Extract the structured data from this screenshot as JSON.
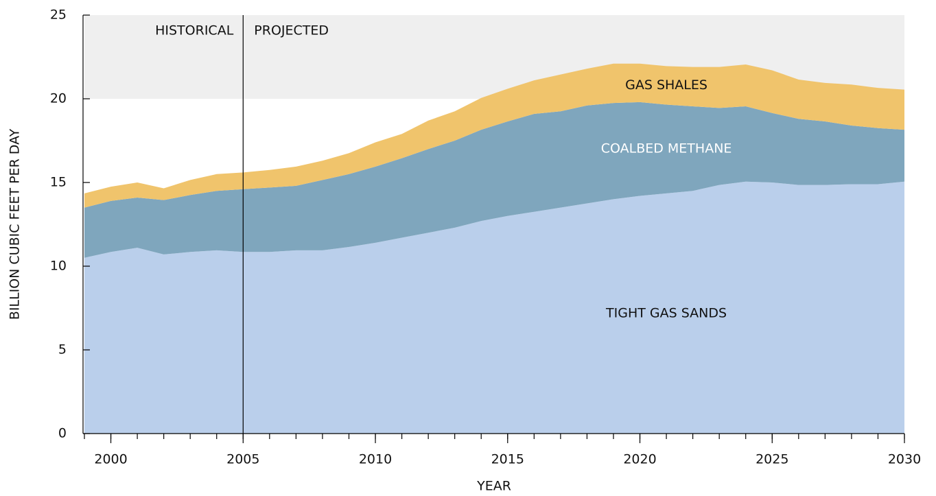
{
  "chart_data": {
    "type": "stacked_area",
    "xlabel": "YEAR",
    "ylabel": "BILLION CUBIC FEET PER DAY",
    "x": [
      1999,
      2000,
      2001,
      2002,
      2003,
      2004,
      2005,
      2006,
      2007,
      2008,
      2009,
      2010,
      2011,
      2012,
      2013,
      2014,
      2015,
      2016,
      2017,
      2018,
      2019,
      2020,
      2021,
      2022,
      2023,
      2024,
      2025,
      2026,
      2027,
      2028,
      2029,
      2030
    ],
    "series": [
      {
        "name": "TIGHT GAS SANDS",
        "color": "#bacfeb",
        "label_color": "#111111",
        "values": [
          10.5,
          10.85,
          11.1,
          10.7,
          10.85,
          10.95,
          10.85,
          10.85,
          10.95,
          10.95,
          11.15,
          11.4,
          11.7,
          12.0,
          12.3,
          12.7,
          13.0,
          13.25,
          13.5,
          13.75,
          14.0,
          14.2,
          14.35,
          14.5,
          14.85,
          15.05,
          15.0,
          14.85,
          14.85,
          14.9,
          14.9,
          15.05
        ]
      },
      {
        "name": "COALBED METHANE",
        "color": "#7fa6bd",
        "label_color": "#ffffff",
        "values": [
          3.0,
          3.05,
          3.0,
          3.25,
          3.4,
          3.55,
          3.75,
          3.85,
          3.85,
          4.2,
          4.35,
          4.55,
          4.75,
          5.0,
          5.2,
          5.45,
          5.65,
          5.85,
          5.75,
          5.85,
          5.75,
          5.6,
          5.3,
          5.05,
          4.6,
          4.5,
          4.15,
          3.95,
          3.8,
          3.5,
          3.35,
          3.1
        ]
      },
      {
        "name": "GAS SHALES",
        "color": "#f0c46c",
        "label_color": "#111111",
        "values": [
          0.85,
          0.85,
          0.9,
          0.7,
          0.9,
          1.0,
          1.0,
          1.05,
          1.15,
          1.15,
          1.25,
          1.45,
          1.45,
          1.7,
          1.75,
          1.9,
          1.95,
          2.0,
          2.2,
          2.2,
          2.35,
          2.3,
          2.3,
          2.35,
          2.45,
          2.5,
          2.55,
          2.35,
          2.3,
          2.45,
          2.4,
          2.4
        ]
      }
    ],
    "xlim": [
      1999,
      2030
    ],
    "xticks": [
      2000,
      2005,
      2010,
      2015,
      2020,
      2025,
      2030
    ],
    "minor_xticks": [
      1999,
      2000,
      2001,
      2002,
      2003,
      2004,
      2005,
      2006,
      2007,
      2008,
      2009,
      2010,
      2011,
      2012,
      2013,
      2014,
      2015,
      2016,
      2017,
      2018,
      2019,
      2020,
      2021,
      2022,
      2023,
      2024,
      2025,
      2026,
      2027,
      2028,
      2029,
      2030
    ],
    "ylim": [
      0,
      25
    ],
    "yticks": [
      0,
      5,
      10,
      15,
      20,
      25
    ],
    "shaded_band": [
      20,
      25
    ],
    "divider": {
      "x": 2005,
      "left_label": "HISTORICAL",
      "right_label": "PROJECTED"
    }
  }
}
